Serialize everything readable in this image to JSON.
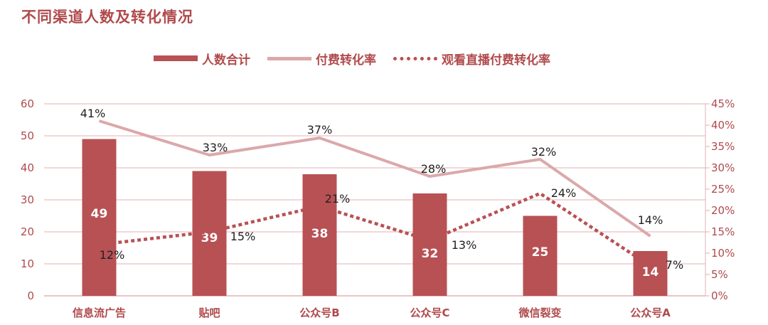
{
  "chart_data": {
    "type": "bar",
    "title": "不同渠道人数及转化情况",
    "categories": [
      "信息流广告",
      "贴吧",
      "公众号B",
      "公众号C",
      "微信裂变",
      "公众号A"
    ],
    "series": [
      {
        "name": "人数合计",
        "kind": "bar",
        "axis": "left",
        "values": [
          49,
          39,
          38,
          32,
          25,
          14
        ],
        "labels": [
          "49",
          "39",
          "38",
          "32",
          "25",
          "14"
        ]
      },
      {
        "name": "付费转化率",
        "kind": "line",
        "axis": "right",
        "values": [
          41,
          33,
          37,
          28,
          32,
          14
        ],
        "labels": [
          "41%",
          "33%",
          "37%",
          "28%",
          "32%",
          "14%"
        ]
      },
      {
        "name": "观看直播付费转化率",
        "kind": "dotted-line",
        "axis": "right",
        "values": [
          12,
          15,
          21,
          13,
          24,
          7
        ],
        "labels": [
          "12%",
          "15%",
          "21%",
          "13%",
          "24%",
          "7%"
        ]
      }
    ],
    "y_left": {
      "ylim": [
        0,
        60
      ],
      "ticks": [
        "0",
        "10",
        "20",
        "30",
        "40",
        "50",
        "60"
      ]
    },
    "y_right": {
      "ylim": [
        0,
        45
      ],
      "ticks": [
        "0%",
        "5%",
        "10%",
        "15%",
        "20%",
        "25%",
        "30%",
        "35%",
        "40%",
        "45%"
      ]
    },
    "grid": true,
    "legend_position": "top",
    "colors": {
      "bar": "#b85154",
      "line": "#dba8aa",
      "dotted": "#b85154",
      "text": "#b04a4c",
      "grid": "#e3b0b2"
    }
  }
}
